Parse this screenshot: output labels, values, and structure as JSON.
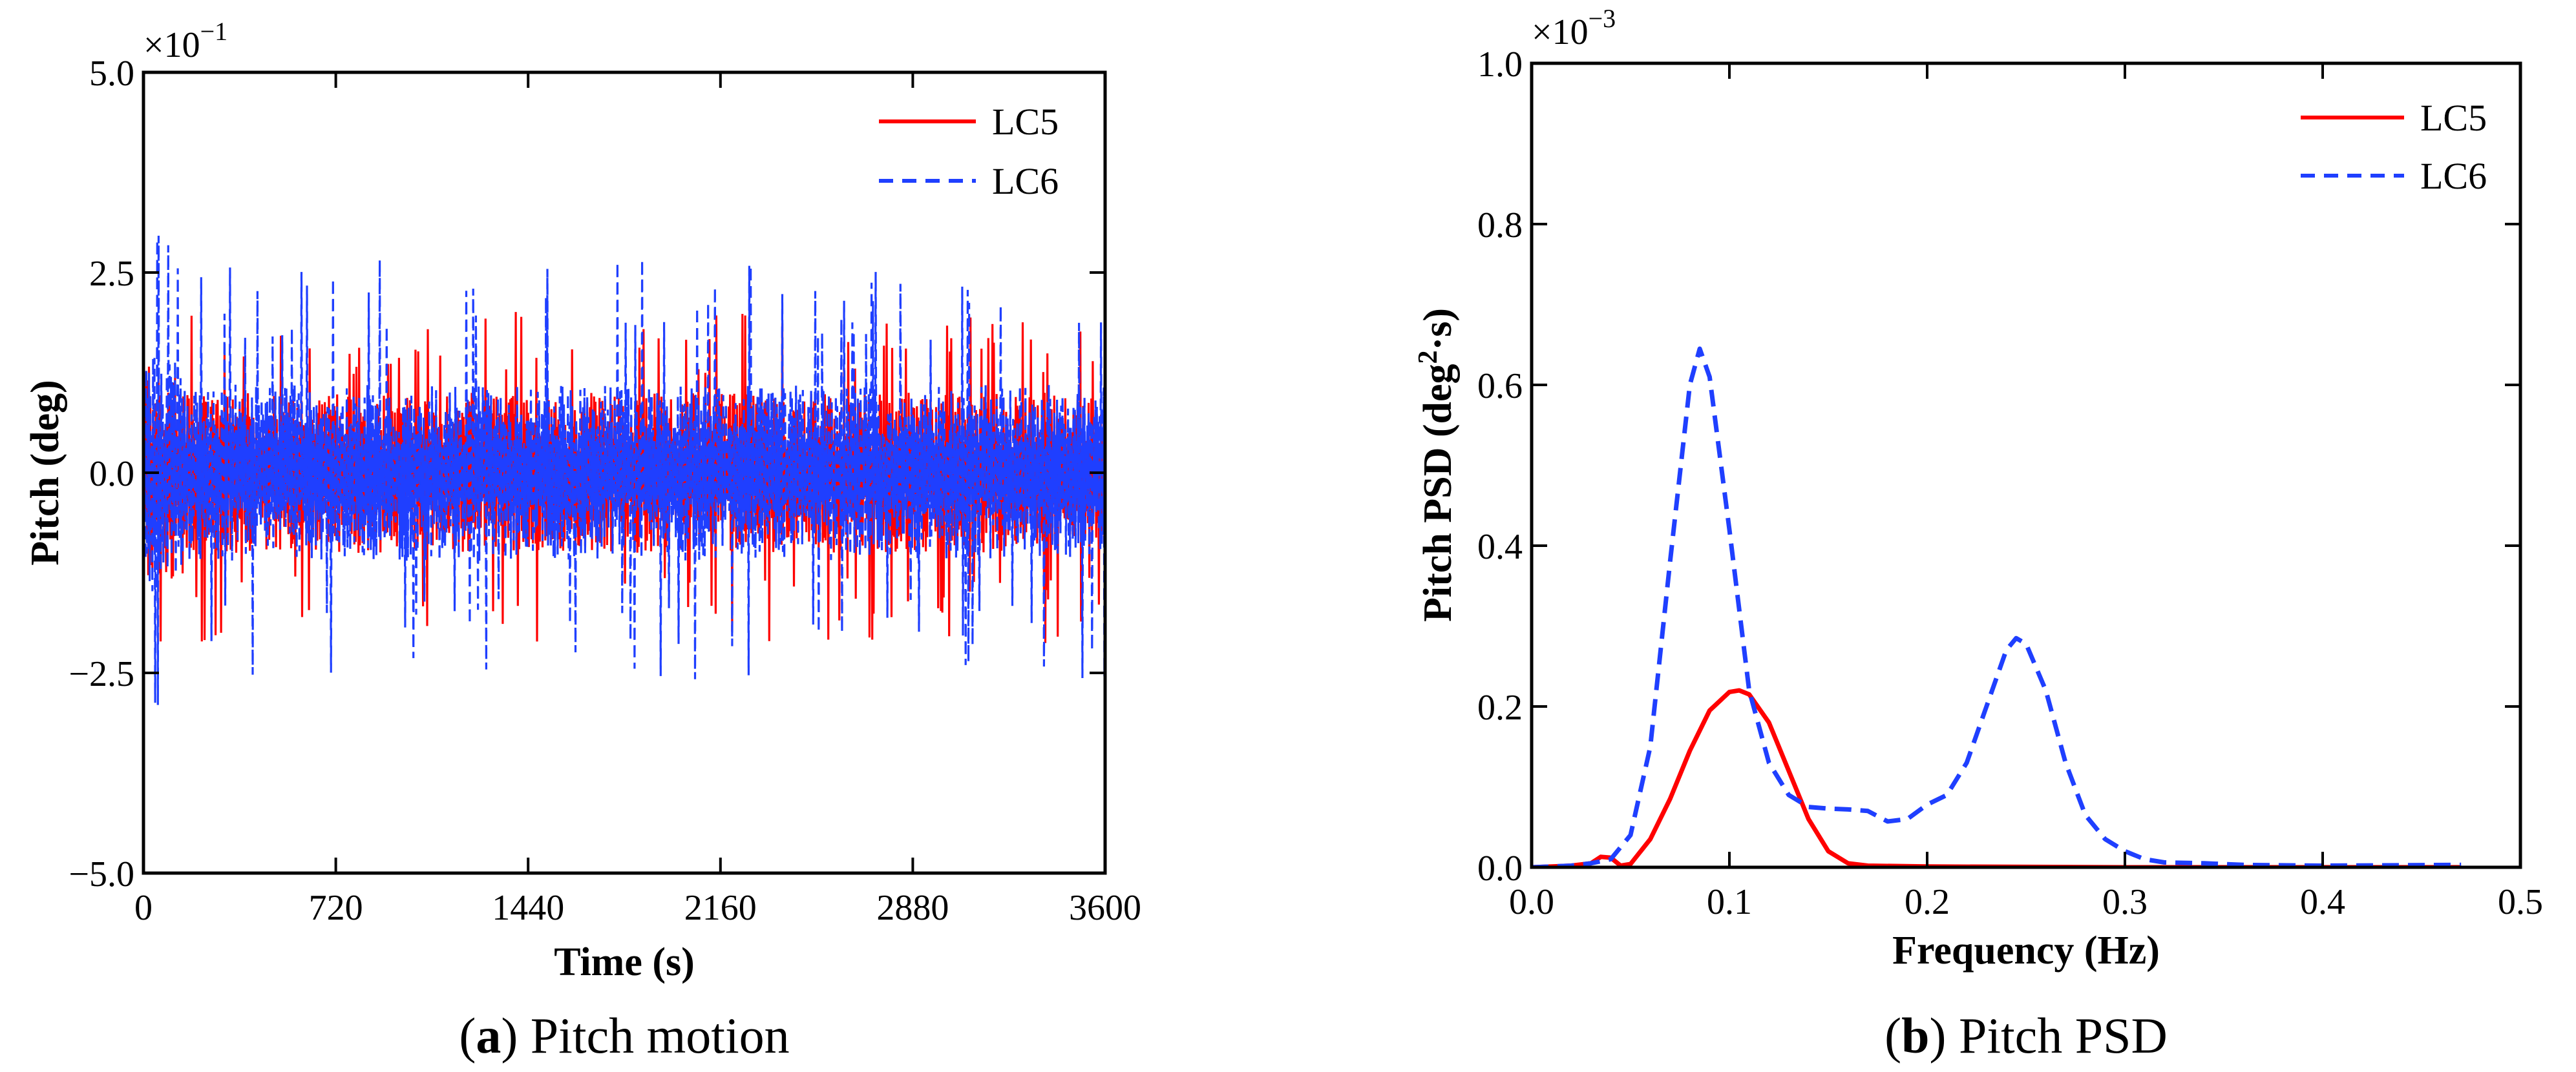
{
  "chart_data": [
    {
      "type": "line",
      "caption_letter": "a",
      "caption_text": "Pitch motion",
      "xlabel": "Time (s)",
      "ylabel": "Pitch (deg)",
      "y_multiplier": "×10",
      "y_multiplier_exp": "−1",
      "xlim": [
        0,
        3600
      ],
      "ylim": [
        -5.0,
        5.0
      ],
      "xticks": [
        0,
        720,
        1440,
        2160,
        2880,
        3600
      ],
      "xtick_labels": [
        "0",
        "720",
        "1440",
        "2160",
        "2880",
        "3600"
      ],
      "yticks": [
        -5.0,
        -2.5,
        0.0,
        2.5,
        5.0
      ],
      "ytick_labels": [
        "−5.0",
        "−2.5",
        "0.0",
        "2.5",
        "5.0"
      ],
      "grid": false,
      "legend_position": "top-right",
      "series": [
        {
          "name": "LC5",
          "color": "#ff0000",
          "style": "solid",
          "amplitude_range": [
            -2.4,
            2.25
          ],
          "typical_range": [
            -1.0,
            1.0
          ]
        },
        {
          "name": "LC6",
          "color": "#1f3fff",
          "style": "dashed",
          "amplitude_range": [
            -2.9,
            3.0
          ],
          "typical_range": [
            -1.1,
            1.1
          ]
        }
      ]
    },
    {
      "type": "line",
      "caption_letter": "b",
      "caption_text": "Pitch PSD",
      "xlabel": "Frequency (Hz)",
      "ylabel_parts": [
        "Pitch PSD (deg",
        "2",
        "·s)"
      ],
      "y_multiplier": "×10",
      "y_multiplier_exp": "−3",
      "xlim": [
        0.0,
        0.5
      ],
      "ylim": [
        0.0,
        1.0
      ],
      "xticks": [
        0.0,
        0.1,
        0.2,
        0.3,
        0.4,
        0.5
      ],
      "xtick_labels": [
        "0.0",
        "0.1",
        "0.2",
        "0.3",
        "0.4",
        "0.5"
      ],
      "yticks": [
        0.0,
        0.2,
        0.4,
        0.6,
        0.8,
        1.0
      ],
      "ytick_labels": [
        "0.0",
        "0.2",
        "0.4",
        "0.6",
        "0.8",
        "1.0"
      ],
      "grid": false,
      "legend_position": "top-right",
      "series": [
        {
          "name": "LC5",
          "color": "#ff0000",
          "style": "solid",
          "x": [
            0.0,
            0.02,
            0.03,
            0.035,
            0.04,
            0.045,
            0.05,
            0.06,
            0.07,
            0.08,
            0.09,
            0.1,
            0.105,
            0.11,
            0.12,
            0.13,
            0.14,
            0.15,
            0.16,
            0.17,
            0.2,
            0.3,
            0.4,
            0.47
          ],
          "y": [
            0.0,
            0.002,
            0.005,
            0.013,
            0.012,
            0.002,
            0.004,
            0.035,
            0.085,
            0.145,
            0.195,
            0.218,
            0.22,
            0.215,
            0.18,
            0.12,
            0.06,
            0.02,
            0.005,
            0.002,
            0.001,
            0.0,
            0.0,
            0.0
          ]
        },
        {
          "name": "LC6",
          "color": "#1f3fff",
          "style": "dashed",
          "x": [
            0.0,
            0.02,
            0.03,
            0.04,
            0.05,
            0.06,
            0.07,
            0.08,
            0.085,
            0.09,
            0.1,
            0.11,
            0.12,
            0.13,
            0.14,
            0.15,
            0.16,
            0.17,
            0.18,
            0.19,
            0.2,
            0.21,
            0.22,
            0.23,
            0.24,
            0.245,
            0.25,
            0.26,
            0.27,
            0.28,
            0.29,
            0.3,
            0.31,
            0.32,
            0.34,
            0.36,
            0.4,
            0.47
          ],
          "y": [
            0.0,
            0.002,
            0.005,
            0.01,
            0.04,
            0.15,
            0.38,
            0.6,
            0.645,
            0.61,
            0.42,
            0.22,
            0.13,
            0.09,
            0.075,
            0.073,
            0.072,
            0.07,
            0.057,
            0.06,
            0.078,
            0.09,
            0.13,
            0.2,
            0.27,
            0.285,
            0.278,
            0.22,
            0.13,
            0.065,
            0.035,
            0.02,
            0.01,
            0.006,
            0.005,
            0.003,
            0.002,
            0.003
          ]
        }
      ]
    }
  ]
}
